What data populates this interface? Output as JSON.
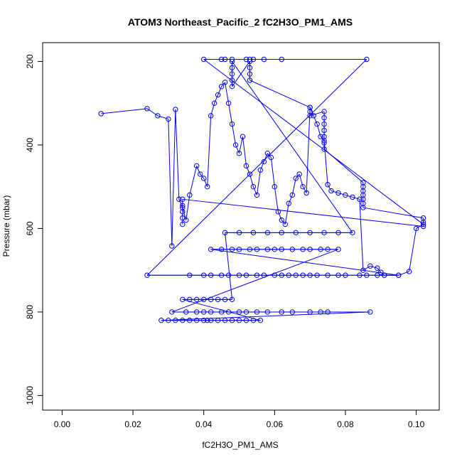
{
  "chart_data": {
    "type": "scatter",
    "title": "ATOM3 Northeast_Pacific_2 fC2H3O_PM1_AMS",
    "xlabel": "fC2H3O_PM1_AMS",
    "ylabel": "Pressure (mbar)",
    "xlim": [
      -0.0055,
      0.1065
    ],
    "ylim": [
      1035,
      155
    ],
    "y_reversed": true,
    "x_ticks": [
      "0.00",
      "0.02",
      "0.04",
      "0.06",
      "0.08",
      "0.10"
    ],
    "y_ticks": [
      "200",
      "400",
      "600",
      "800",
      "1000"
    ],
    "marker": "open-circle",
    "connect_points": true,
    "grid": false,
    "legend": "none",
    "colors": {
      "series": "#0000ff",
      "axis": "#000000",
      "background": "#ffffff"
    },
    "series": [
      {
        "x": [
          0.011,
          0.024,
          0.027,
          0.03,
          0.031,
          0.032,
          0.033,
          0.034,
          0.035,
          0.036,
          0.038,
          0.039,
          0.04,
          0.041,
          0.042,
          0.043,
          0.044,
          0.045,
          0.046,
          0.047,
          0.048,
          0.049,
          0.05,
          0.051,
          0.052,
          0.053,
          0.054,
          0.055,
          0.056,
          0.057,
          0.058,
          0.059,
          0.06,
          0.061,
          0.062,
          0.063,
          0.064,
          0.065,
          0.066,
          0.067,
          0.068,
          0.069,
          0.07,
          0.071,
          0.072,
          0.073,
          0.074,
          0.075,
          0.076,
          0.078,
          0.08,
          0.082,
          0.084,
          0.085,
          0.087,
          0.089,
          0.09,
          0.091,
          0.095,
          0.098,
          0.1,
          0.102
        ],
        "y": [
          325,
          313,
          330,
          338,
          642,
          315,
          530,
          550,
          580,
          520,
          450,
          470,
          480,
          500,
          330,
          300,
          280,
          260,
          250,
          300,
          350,
          400,
          420,
          380,
          450,
          470,
          500,
          520,
          460,
          440,
          420,
          430,
          500,
          560,
          580,
          590,
          540,
          520,
          480,
          470,
          500,
          515,
          310,
          330,
          350,
          380,
          390,
          495,
          510,
          515,
          520,
          525,
          530,
          700,
          690,
          695,
          705,
          712,
          712,
          703,
          600,
          590
        ],
        "bands": [
          {
            "y": 195,
            "x": [
              0.04,
              0.045,
              0.046,
              0.048,
              0.052,
              0.053,
              0.054,
              0.057,
              0.062,
              0.086
            ]
          },
          {
            "y": 712,
            "x": [
              0.024,
              0.036,
              0.04,
              0.042,
              0.045,
              0.047,
              0.05,
              0.052,
              0.055,
              0.057,
              0.06,
              0.062,
              0.064,
              0.066,
              0.068,
              0.07,
              0.072,
              0.075,
              0.078,
              0.08,
              0.084,
              0.086,
              0.089,
              0.091,
              0.095
            ]
          },
          {
            "y": 650,
            "x": [
              0.042,
              0.045,
              0.048,
              0.05,
              0.053,
              0.055,
              0.058,
              0.06,
              0.062,
              0.065,
              0.068,
              0.07,
              0.073,
              0.075,
              0.078
            ]
          },
          {
            "y": 800,
            "x": [
              0.031,
              0.035,
              0.038,
              0.04,
              0.042,
              0.045,
              0.047,
              0.05,
              0.052,
              0.055,
              0.058,
              0.062,
              0.065,
              0.07,
              0.073,
              0.075,
              0.087
            ]
          },
          {
            "y": 820,
            "x": [
              0.028,
              0.03,
              0.032,
              0.034,
              0.036,
              0.038,
              0.04,
              0.041,
              0.042,
              0.044,
              0.046,
              0.048,
              0.05,
              0.052,
              0.054,
              0.056
            ]
          },
          {
            "y": 770,
            "x": [
              0.034,
              0.036,
              0.038,
              0.04,
              0.042,
              0.044,
              0.046,
              0.048
            ]
          },
          {
            "y": 610,
            "x": [
              0.046,
              0.05,
              0.054,
              0.058,
              0.062,
              0.066,
              0.07,
              0.074,
              0.078,
              0.082
            ]
          }
        ],
        "columns": [
          {
            "x": 0.048,
            "y": [
              200,
              215,
              230,
              245,
              260
            ]
          },
          {
            "x": 0.053,
            "y": [
              200,
              215,
              230,
              245
            ]
          },
          {
            "x": 0.07,
            "y": [
              310,
              320,
              330
            ]
          },
          {
            "x": 0.074,
            "y": [
              320,
              335,
              350,
              365,
              380,
              395,
              410
            ]
          },
          {
            "x": 0.085,
            "y": [
              490,
              500,
              510,
              520,
              530,
              540,
              550
            ]
          },
          {
            "x": 0.102,
            "y": [
              575,
              585,
              595
            ]
          },
          {
            "x": 0.034,
            "y": [
              530,
              545,
              560,
              575,
              590
            ]
          }
        ]
      }
    ]
  }
}
